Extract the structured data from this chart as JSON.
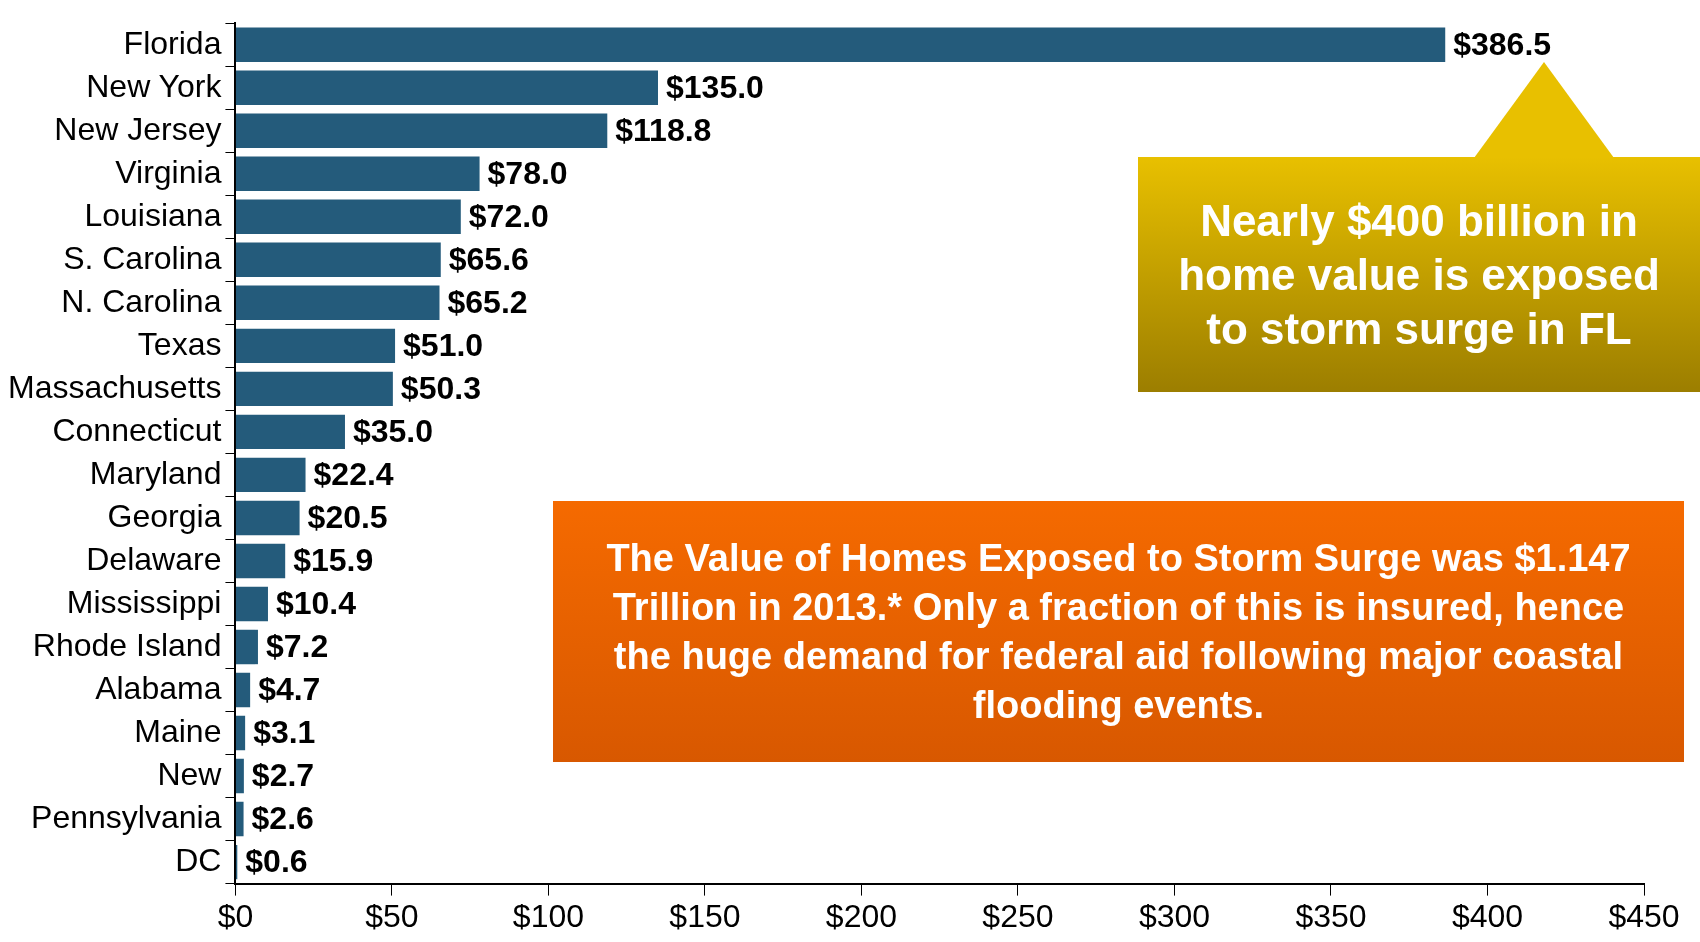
{
  "chart_data": {
    "type": "bar",
    "orientation": "horizontal",
    "categories": [
      "Florida",
      "New York",
      "New Jersey",
      "Virginia",
      "Louisiana",
      "S. Carolina",
      "N. Carolina",
      "Texas",
      "Massachusetts",
      "Connecticut",
      "Maryland",
      "Georgia",
      "Delaware",
      "Mississippi",
      "Rhode Island",
      "Alabama",
      "Maine",
      "New",
      "Pennsylvania",
      "DC"
    ],
    "values": [
      386.5,
      135.0,
      118.8,
      78.0,
      72.0,
      65.6,
      65.2,
      51.0,
      50.3,
      35.0,
      22.4,
      20.5,
      15.9,
      10.4,
      7.2,
      4.7,
      3.1,
      2.7,
      2.6,
      0.6
    ],
    "value_labels": [
      "$386.5",
      "$135.0",
      "$118.8",
      "$78.0",
      "$72.0",
      "$65.6",
      "$65.2",
      "$51.0",
      "$50.3",
      "$35.0",
      "$22.4",
      "$20.5",
      "$15.9",
      "$10.4",
      "$7.2",
      "$4.7",
      "$3.1",
      "$2.7",
      "$2.6",
      "$0.6"
    ],
    "color": "#245b7b",
    "xlim": [
      0,
      450
    ],
    "xticks": [
      {
        "value": 0,
        "label": "$0"
      },
      {
        "value": 50,
        "label": "$50"
      },
      {
        "value": 100,
        "label": "$100"
      },
      {
        "value": 150,
        "label": "$150"
      },
      {
        "value": 200,
        "label": "$200"
      },
      {
        "value": 250,
        "label": "$250"
      },
      {
        "value": 300,
        "label": "$300"
      },
      {
        "value": 350,
        "label": "$350"
      },
      {
        "value": 400,
        "label": "$400"
      },
      {
        "value": 450,
        "label": "$450"
      }
    ],
    "legend": false,
    "annotations": [
      "Nearly $400 billion in home value is exposed to storm surge in FL",
      "The Value of Homes Exposed to Storm Surge was $1.147 Trillion in 2013.*  Only a fraction of this is insured, hence the huge demand for federal aid following major coastal flooding events."
    ]
  }
}
